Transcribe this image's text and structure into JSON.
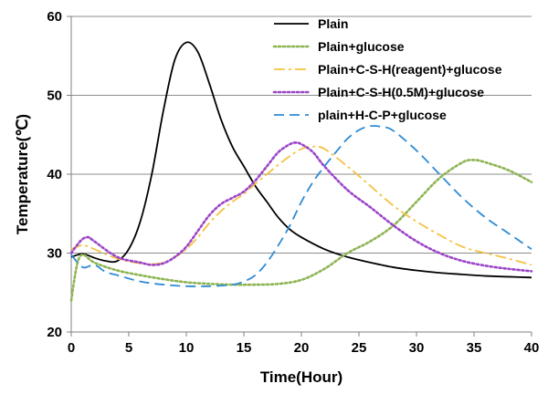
{
  "chart_data": {
    "type": "line",
    "xlabel": "Time(Hour)",
    "ylabel": "Temperature(℃)",
    "xlim": [
      0,
      40
    ],
    "ylim": [
      20,
      60
    ],
    "xticks": [
      0,
      5,
      10,
      15,
      20,
      25,
      30,
      35,
      40
    ],
    "yticks": [
      20,
      30,
      40,
      50,
      60
    ],
    "grid": "horizontal",
    "legend_position": "top-right",
    "series": [
      {
        "name": "Plain",
        "color": "#000000",
        "style": "solid",
        "x": [
          0,
          1,
          2,
          3,
          4,
          5,
          6,
          7,
          8,
          9,
          10,
          11,
          12,
          13,
          14,
          15,
          16,
          17,
          18,
          19,
          20,
          22,
          24,
          26,
          28,
          30,
          32,
          34,
          36,
          38,
          40
        ],
        "y": [
          29.5,
          29.9,
          29.4,
          29.0,
          29.0,
          30.5,
          34.0,
          40.0,
          48.0,
          54.5,
          56.7,
          55.5,
          51.5,
          47.0,
          43.5,
          41.0,
          38.5,
          36.5,
          34.5,
          33.0,
          32.0,
          30.5,
          29.5,
          28.8,
          28.2,
          27.8,
          27.5,
          27.3,
          27.1,
          27.0,
          26.9
        ]
      },
      {
        "name": "Plain+glucose",
        "color": "#8db452",
        "style": "dotted",
        "x": [
          0,
          0.5,
          1,
          2,
          4,
          6,
          8,
          10,
          12,
          14,
          16,
          18,
          20,
          22,
          24,
          26,
          28,
          30,
          32,
          34,
          35,
          36,
          38,
          40
        ],
        "y": [
          24.0,
          28.5,
          29.8,
          28.8,
          27.8,
          27.2,
          26.7,
          26.3,
          26.1,
          26.0,
          26.0,
          26.1,
          26.6,
          28.0,
          30.0,
          31.5,
          33.5,
          36.5,
          39.5,
          41.5,
          41.8,
          41.5,
          40.5,
          39.0
        ]
      },
      {
        "name": "Plain+C-S-H(reagent)+glucose",
        "color": "#f5c242",
        "style": "dashdot",
        "x": [
          0,
          1,
          2,
          4,
          6,
          7,
          8,
          9,
          10,
          11,
          12,
          13,
          14,
          15,
          16,
          17,
          18,
          19,
          20,
          21,
          22,
          24,
          26,
          28,
          30,
          32,
          34,
          36,
          38,
          40
        ],
        "y": [
          30.5,
          31.0,
          30.5,
          29.3,
          28.7,
          28.6,
          28.8,
          29.5,
          30.5,
          32.0,
          33.8,
          35.3,
          36.5,
          37.5,
          38.8,
          40.0,
          41.2,
          42.3,
          43.2,
          43.5,
          43.2,
          41.0,
          38.5,
          36.0,
          34.0,
          32.3,
          30.8,
          30.0,
          29.3,
          28.5
        ]
      },
      {
        "name": "Plain+C-S-H(0.5M)+glucose",
        "color": "#9b45c8",
        "style": "dotted",
        "x": [
          0,
          0.5,
          1,
          1.5,
          2,
          4,
          6,
          7,
          8,
          9,
          10,
          11,
          12,
          13,
          14,
          15,
          16,
          17,
          18,
          19,
          19.5,
          20,
          21,
          22,
          24,
          26,
          28,
          30,
          32,
          34,
          36,
          38,
          40
        ],
        "y": [
          30.0,
          31.0,
          31.8,
          32.0,
          31.5,
          29.5,
          28.8,
          28.5,
          28.7,
          29.5,
          30.8,
          32.8,
          34.8,
          36.2,
          37.0,
          37.8,
          39.2,
          41.0,
          42.8,
          43.8,
          44.0,
          43.8,
          42.8,
          41.0,
          38.0,
          35.8,
          33.5,
          31.5,
          30.0,
          29.0,
          28.4,
          28.0,
          27.7
        ]
      },
      {
        "name": "plain+H-C-P+glucose",
        "color": "#2e8bd4",
        "style": "dashed",
        "x": [
          0,
          1,
          2,
          3,
          4,
          6,
          8,
          10,
          12,
          14,
          15,
          16,
          17,
          18,
          19,
          20,
          21,
          22,
          23,
          24,
          25,
          26,
          27,
          28,
          30,
          32,
          34,
          36,
          38,
          40
        ],
        "y": [
          29.8,
          28.2,
          28.5,
          27.6,
          27.2,
          26.4,
          26.0,
          25.8,
          25.8,
          26.0,
          26.4,
          27.2,
          28.8,
          31.0,
          33.5,
          36.5,
          39.0,
          41.0,
          42.8,
          44.5,
          45.6,
          46.1,
          46.0,
          45.5,
          43.0,
          40.0,
          37.0,
          34.5,
          32.5,
          30.5
        ]
      }
    ]
  }
}
